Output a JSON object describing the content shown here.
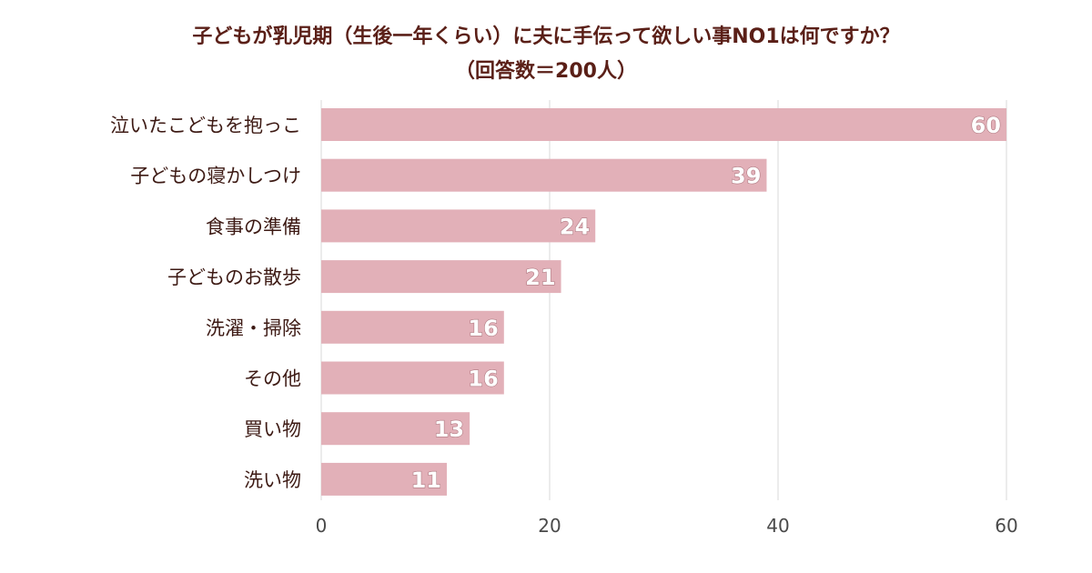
{
  "chart_data": {
    "type": "bar",
    "orientation": "horizontal",
    "title": "子どもが乳児期（生後一年くらい）に夫に手伝って欲しい事NO1は何ですか？",
    "subtitle": "（回答数＝200人）",
    "categories": [
      "泣いたこどもを抱っこ",
      "子どもの寝かしつけ",
      "食事の準備",
      "子どものお散歩",
      "洗濯・掃除",
      "その他",
      "買い物",
      "洗い物"
    ],
    "values": [
      60,
      39,
      24,
      21,
      16,
      16,
      13,
      11
    ],
    "xlim": [
      0,
      60
    ],
    "xticks": [
      0,
      20,
      40,
      60
    ],
    "grid": true,
    "colors": {
      "bar": "#e2b0b8",
      "title": "#5a1f17"
    }
  }
}
